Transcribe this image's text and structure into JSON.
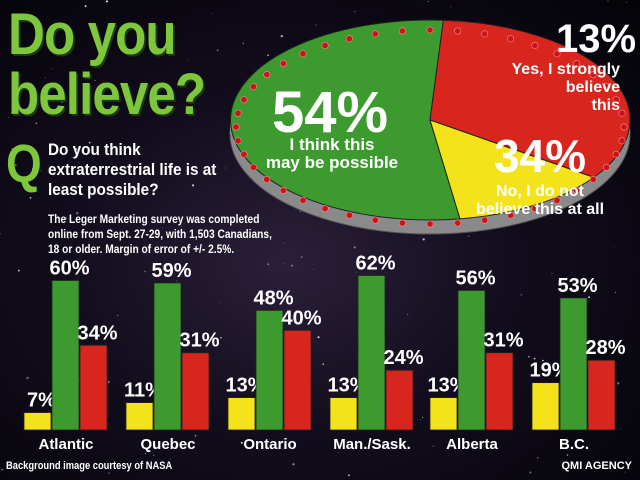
{
  "title_line1": "Do you",
  "title_line2": "believe?",
  "q_mark": "Q",
  "question": "Do you think extraterrestrial life is at least possible?",
  "survey_note": "The Leger Marketing survey was completed online from Sept. 27-29, with 1,503 Canadians, 18 or older.  Margin of error of +/- 2.5%.",
  "credit": "Background image courtesy of NASA",
  "agency": "QMI AGENCY",
  "colors": {
    "possible": "#3c9a2f",
    "strongly": "#f4e21a",
    "not": "#d8251e",
    "title": "#7ec63c"
  },
  "chart_data": [
    {
      "type": "pie",
      "slices": [
        {
          "label_lines": [
            "I think this",
            "may be possible"
          ],
          "value": 54,
          "value_label": "54%",
          "color": "#3c9a2f"
        },
        {
          "label_lines": [
            "No, I do not",
            "believe this at all"
          ],
          "value": 34,
          "value_label": "34%",
          "color": "#d8251e"
        },
        {
          "label_lines": [
            "Yes, I strongly",
            "believe",
            "this"
          ],
          "value": 13,
          "value_label": "13%",
          "color": "#f4e21a"
        }
      ]
    },
    {
      "type": "bar",
      "categories": [
        "Atlantic",
        "Quebec",
        "Ontario",
        "Man./Sask.",
        "Alberta",
        "B.C."
      ],
      "series": [
        {
          "key": "strongly",
          "color": "#f4e21a",
          "values": [
            7,
            11,
            13,
            13,
            13,
            19
          ],
          "labels": [
            "7%",
            "11%",
            "13%",
            "13%",
            "13%",
            "19%"
          ]
        },
        {
          "key": "possible",
          "color": "#3c9a2f",
          "values": [
            60,
            59,
            48,
            62,
            56,
            53
          ],
          "labels": [
            "60%",
            "59%",
            "48%",
            "62%",
            "56%",
            "53%"
          ]
        },
        {
          "key": "not",
          "color": "#d8251e",
          "values": [
            34,
            31,
            40,
            24,
            31,
            28
          ],
          "labels": [
            "34%",
            "31%",
            "40%",
            "24%",
            "31%",
            "28%"
          ]
        }
      ],
      "ylim": [
        0,
        65
      ]
    }
  ]
}
